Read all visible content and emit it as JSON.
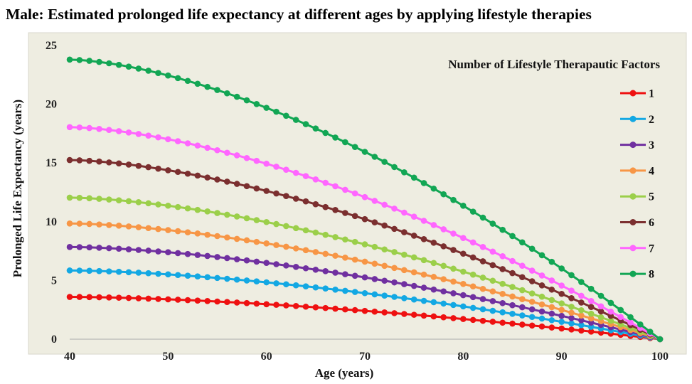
{
  "chart_data": {
    "type": "line",
    "title": "Male: Estimated prolonged life expectancy at different ages by applying lifestyle therapies",
    "xlabel": "Age (years)",
    "ylabel": "Prolonged Life Expectancy (years)",
    "xlim": [
      40,
      100
    ],
    "ylim": [
      0,
      25
    ],
    "x_ticks": [
      "40",
      "50",
      "60",
      "70",
      "80",
      "90",
      "100"
    ],
    "y_ticks": [
      "0",
      "5",
      "10",
      "15",
      "20",
      "25"
    ],
    "x_tick_values": [
      40,
      50,
      60,
      70,
      80,
      90,
      100
    ],
    "y_tick_values": [
      0,
      5,
      10,
      15,
      20,
      25
    ],
    "legend_title": "Number of Lifestyle Therapautic Factors",
    "legend_position": "top-right",
    "x_step": 1,
    "curve_exponent": 1.6,
    "background_color": "#eeede1",
    "series": [
      {
        "name": "1",
        "start_value": 3.6,
        "end_value": 0,
        "color": "#ee1111"
      },
      {
        "name": "2",
        "start_value": 5.85,
        "end_value": 0,
        "color": "#13a8e3"
      },
      {
        "name": "3",
        "start_value": 7.85,
        "end_value": 0,
        "color": "#7030a0"
      },
      {
        "name": "4",
        "start_value": 9.85,
        "end_value": 0,
        "color": "#f79646"
      },
      {
        "name": "5",
        "start_value": 12.05,
        "end_value": 0,
        "color": "#9bcf4a"
      },
      {
        "name": "6",
        "start_value": 15.25,
        "end_value": 0,
        "color": "#7b2f2f"
      },
      {
        "name": "7",
        "start_value": 18.05,
        "end_value": 0,
        "color": "#ff66ff"
      },
      {
        "name": "8",
        "start_value": 23.8,
        "end_value": 0,
        "color": "#12a654"
      }
    ]
  }
}
